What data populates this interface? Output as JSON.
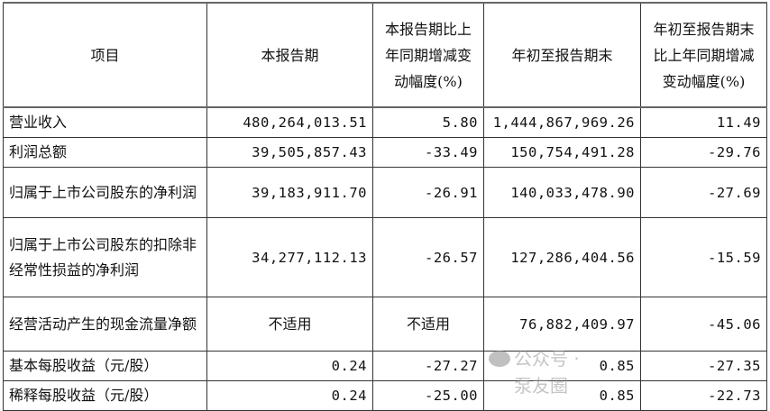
{
  "headers": [
    "项目",
    "本报告期",
    "本报告期比上年同期增减变动幅度(%)",
    "年初至报告期末",
    "年初至报告期末比上年同期增减变动幅度(%)"
  ],
  "rows": [
    {
      "item": "营业收入",
      "current": "480,264,013.51",
      "current_change": "5.80",
      "ytd": "1,444,867,969.26",
      "ytd_change": "11.49"
    },
    {
      "item": "利润总额",
      "current": "39,505,857.43",
      "current_change": "-33.49",
      "ytd": "150,754,491.28",
      "ytd_change": "-29.76"
    },
    {
      "item": "归属于上市公司股东的净利润",
      "current": "39,183,911.70",
      "current_change": "-26.91",
      "ytd": "140,033,478.90",
      "ytd_change": "-27.69"
    },
    {
      "item": "归属于上市公司股东的扣除非经常性损益的净利润",
      "current": "34,277,112.13",
      "current_change": "-26.57",
      "ytd": "127,286,404.56",
      "ytd_change": "-15.59"
    },
    {
      "item": "经营活动产生的现金流量净额",
      "current": "不适用",
      "current_change": "不适用",
      "ytd": "76,882,409.97",
      "ytd_change": "-45.06"
    },
    {
      "item": "基本每股收益（元/股）",
      "current": "0.24",
      "current_change": "-27.27",
      "ytd": "0.85",
      "ytd_change": "-27.35"
    },
    {
      "item": "稀释每股收益（元/股）",
      "current": "0.24",
      "current_change": "-25.00",
      "ytd": "0.85",
      "ytd_change": "-22.73"
    }
  ],
  "watermark": "公众号 · 泵友圈"
}
